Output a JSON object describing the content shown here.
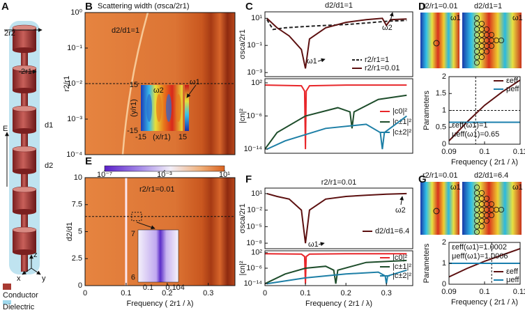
{
  "figure": {
    "panel_labels": [
      "A",
      "B",
      "C",
      "D",
      "E",
      "F",
      "G"
    ],
    "panel_a": {
      "diameter_outer": "2r2",
      "diameter_inner": "2r1",
      "field": "E",
      "gap1": "d1",
      "gap2": "d2",
      "axis_z": "z",
      "axis_x": "x",
      "axis_y": "y",
      "conductor": "Conductor",
      "dielectric": "Dielectric"
    },
    "panel_d_maps": [
      "r2/r1=0.01",
      "ω1",
      "d2/d1=1",
      "ω1"
    ],
    "panel_g_maps": [
      "r2/r1=0.01",
      "ω1",
      "d2/d1=6.4",
      "ω1"
    ]
  },
  "chart_data": [
    {
      "type": "heatmap",
      "title": "Scattering width (σsca/2r1)",
      "ylabel": "r2/r1",
      "ylog": true,
      "ylim": [
        0.0001,
        1
      ],
      "yticks": [
        {
          "value": 1,
          "label": "10⁰"
        },
        {
          "value": 0.1,
          "label": "10⁻¹"
        },
        {
          "value": 0.01,
          "label": "10⁻²"
        },
        {
          "value": 0.001,
          "label": "10⁻³"
        },
        {
          "value": 0.0001,
          "label": "10⁻⁴"
        }
      ],
      "hline": 0.01,
      "annotations": [
        "d2/d1=1",
        "ω2",
        "ω1"
      ],
      "inset": {
        "xlim": [
          -15,
          15
        ],
        "ylim": [
          -15,
          15
        ],
        "xticks": [
          -15,
          15
        ],
        "yticks": [
          15,
          -15
        ],
        "xlabel": "(x/r1)",
        "ylabel": "(y/r1)"
      }
    },
    {
      "type": "heatmap",
      "ylabel": "d2/d1",
      "xlabel": "Frequency ( 2r1 / λ)",
      "xlim": [
        0,
        0.365
      ],
      "ylim": [
        0,
        10
      ],
      "xticks": [
        0,
        0.1,
        0.2,
        0.3
      ],
      "yticks": [
        0,
        2.5,
        5,
        7.5,
        10
      ],
      "hline": 6.4,
      "vline": 0.1,
      "annotations": [
        "r2/r1=0.01"
      ],
      "colorbar": {
        "lim": [
          1e-07,
          10
        ],
        "ticks": [
          {
            "value": 1e-07,
            "label": "10⁻⁷"
          },
          {
            "value": 0.001,
            "label": "10⁻³"
          },
          {
            "value": 10,
            "label": "10¹"
          }
        ]
      },
      "inset": {
        "xlim": [
          0.0985,
          0.1045
        ],
        "ylim": [
          5.9,
          7.1
        ],
        "xticks": [
          0.1,
          0.104
        ],
        "yticks": [
          7,
          6
        ]
      }
    },
    {
      "type": "line",
      "title": "d2/d1=1",
      "ylabel": "σsca/2r1",
      "xlim": [
        0,
        0.365
      ],
      "ylog": true,
      "ylim": [
        0.0005,
        30
      ],
      "yticks": [
        {
          "value": 0.001,
          "label": "10⁻³"
        },
        {
          "value": 0.1,
          "label": "10⁻¹"
        },
        {
          "value": 10,
          "label": "10¹"
        }
      ],
      "series": [
        {
          "name": "r2/r1=1",
          "color": "#222222",
          "dashed": true,
          "x": [
            0.005,
            0.02,
            0.05,
            0.1,
            0.15,
            0.2,
            0.25,
            0.3,
            0.35
          ],
          "values": [
            8,
            1.5,
            2,
            2.5,
            3,
            3.5,
            4.5,
            6,
            7
          ]
        },
        {
          "name": "r2/r1=0.01",
          "color": "#5c1010",
          "x": [
            0.005,
            0.03,
            0.06,
            0.09,
            0.1,
            0.11,
            0.15,
            0.2,
            0.25,
            0.29,
            0.3,
            0.31,
            0.35
          ],
          "values": [
            10,
            2,
            0.5,
            0.05,
            0.002,
            0.3,
            2,
            5,
            8,
            10,
            3,
            8,
            9
          ]
        }
      ],
      "annotations": [
        "ω1",
        "ω2"
      ],
      "legend": "lower right"
    },
    {
      "type": "line",
      "ylabel": "|cn|²",
      "xlim": [
        0,
        0.365
      ],
      "ylog": true,
      "ylim": [
        1e-15,
        1000
      ],
      "yticks": [
        {
          "value": 1e-14,
          "label": "10⁻¹⁴"
        },
        {
          "value": 1e-06,
          "label": "10⁻⁶"
        },
        {
          "value": 100,
          "label": "10²"
        }
      ],
      "series": [
        {
          "name": "|c0|²",
          "color": "#e8262a",
          "x": [
            0,
            0.09,
            0.098,
            0.1,
            0.102,
            0.11,
            0.2,
            0.35
          ],
          "values": [
            30,
            20,
            1,
            1e-14,
            1,
            20,
            30,
            30
          ]
        },
        {
          "name": "|c±1|²",
          "color": "#1e4d2b",
          "x": [
            0,
            0.03,
            0.1,
            0.18,
            0.21,
            0.215,
            0.22,
            0.28,
            0.35
          ],
          "values": [
            1e-14,
            1e-10,
            1e-06,
            0.0001,
            1e-05,
            1e-09,
            1e-05,
            0.01,
            0.1
          ]
        },
        {
          "name": "|c±2|²",
          "color": "#1d7fa6",
          "x": [
            0.005,
            0.05,
            0.15,
            0.25,
            0.285,
            0.29,
            0.295,
            0.35
          ],
          "values": [
            1e-14,
            1e-12,
            1e-09,
            1e-08,
            1e-10,
            1e-14,
            1e-10,
            1e-06
          ]
        }
      ],
      "legend": "lower right"
    },
    {
      "type": "line",
      "ylabel": "Parameters",
      "xlabel": "Frequency ( 2r1 / λ)",
      "xlim": [
        0.09,
        0.11
      ],
      "ylim": [
        0,
        2
      ],
      "xticks": [
        0.09,
        0.1,
        0.11
      ],
      "yticks": [
        0,
        0.5,
        1,
        1.5,
        2
      ],
      "vline": 0.0975,
      "hline": 1,
      "series": [
        {
          "name": "εeff",
          "color": "#5c1010",
          "x": [
            0.09,
            0.095,
            0.1,
            0.105,
            0.11
          ],
          "values": [
            0.1,
            0.65,
            1.15,
            1.55,
            1.9
          ]
        },
        {
          "name": "μeff",
          "color": "#1a7fae",
          "x": [
            0.09,
            0.11
          ],
          "values": [
            0.65,
            0.65
          ]
        }
      ],
      "annotations": [
        "εeff(ω1)=1",
        "μeff(ω1)=0.65"
      ],
      "legend": "upper right"
    },
    {
      "type": "line",
      "title": "r2/r1=0.01",
      "ylabel": "σsca/2r1",
      "xlim": [
        0,
        0.365
      ],
      "ylog": true,
      "ylim": [
        1e-09,
        100
      ],
      "yticks": [
        {
          "value": 10,
          "label": "10¹"
        },
        {
          "value": 0.01,
          "label": "10⁻²"
        },
        {
          "value": 1e-05,
          "label": "10⁻⁵"
        },
        {
          "value": 1e-08,
          "label": "10⁻⁸"
        }
      ],
      "series": [
        {
          "name": "d2/d1=6.4",
          "color": "#5c1010",
          "x": [
            0.005,
            0.03,
            0.06,
            0.09,
            0.1,
            0.11,
            0.15,
            0.2,
            0.25,
            0.3,
            0.35
          ],
          "values": [
            10,
            3,
            1,
            0.01,
            1e-08,
            0.01,
            1,
            3,
            5,
            8,
            10
          ]
        }
      ],
      "annotations": [
        "ω1",
        "ω2"
      ],
      "legend": "lower right"
    },
    {
      "type": "line",
      "ylabel": "|cn|²",
      "xlabel": "Frequency ( 2r1 / λ)",
      "xlim": [
        0,
        0.365
      ],
      "xticks": [
        0,
        0.1,
        0.2,
        0.3
      ],
      "ylog": true,
      "ylim": [
        1e-15,
        1000
      ],
      "yticks": [
        {
          "value": 1e-14,
          "label": "10⁻¹⁴"
        },
        {
          "value": 1e-06,
          "label": "10⁻⁶"
        },
        {
          "value": 100,
          "label": "10²"
        }
      ],
      "series": [
        {
          "name": "|c0|²",
          "color": "#e8262a",
          "x": [
            0,
            0.09,
            0.098,
            0.1,
            0.102,
            0.11,
            0.2,
            0.35
          ],
          "values": [
            30,
            20,
            1,
            1e-14,
            1,
            20,
            30,
            30
          ]
        },
        {
          "name": "|c±1|²",
          "color": "#1e4d2b",
          "x": [
            0,
            0.05,
            0.1,
            0.15,
            0.17,
            0.175,
            0.18,
            0.25,
            0.35
          ],
          "values": [
            1e-14,
            1e-09,
            1e-06,
            1e-05,
            1e-07,
            1e-14,
            1e-07,
            0.001,
            0.01
          ]
        },
        {
          "name": "|c±2|²",
          "color": "#1d7fa6",
          "x": [
            0.005,
            0.1,
            0.2,
            0.28,
            0.297,
            0.3,
            0.303,
            0.35
          ],
          "values": [
            1e-14,
            1e-11,
            1e-09,
            1e-08,
            1e-10,
            1e-14,
            1e-10,
            1e-07
          ]
        }
      ],
      "legend": "lower right"
    },
    {
      "type": "line",
      "ylabel": "Parameters",
      "xlabel": "Frequency ( 2r1 / λ)",
      "xlim": [
        0.09,
        0.11
      ],
      "ylim": [
        0,
        2
      ],
      "xticks": [
        0.09,
        0.1,
        0.11
      ],
      "yticks": [
        0,
        1,
        2
      ],
      "vline": 0.102,
      "series": [
        {
          "name": "εeff",
          "color": "#5c1010",
          "x": [
            0.09,
            0.095,
            0.1,
            0.105,
            0.11
          ],
          "values": [
            0.35,
            0.75,
            1.1,
            1.4,
            1.7
          ]
        },
        {
          "name": "μeff",
          "color": "#1a7fae",
          "x": [
            0.09,
            0.11
          ],
          "values": [
            1,
            1
          ]
        }
      ],
      "annotations": [
        "εeff(ω1)=1.0002",
        "μeff(ω1)=1.0006"
      ],
      "legend": "lower right"
    }
  ]
}
